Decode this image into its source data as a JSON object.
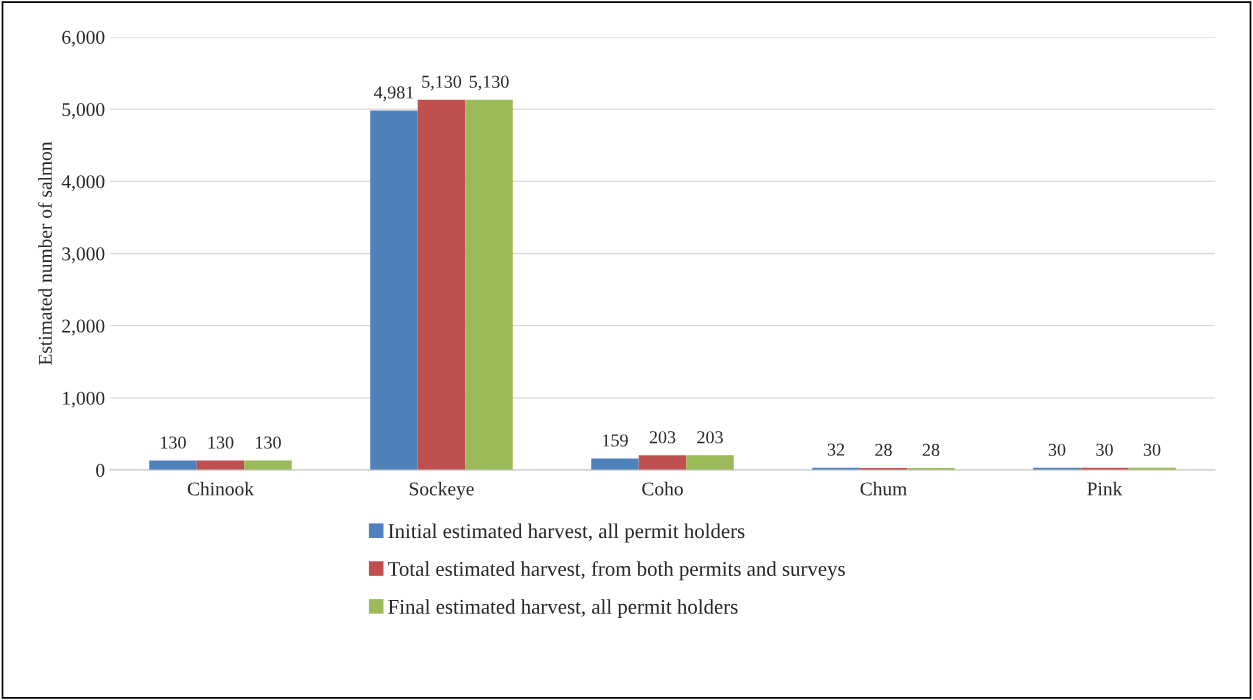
{
  "chart_data": {
    "type": "bar",
    "ylabel": "Estimated number of salmon",
    "categories": [
      "Chinook",
      "Sockeye",
      "Coho",
      "Chum",
      "Pink"
    ],
    "series": [
      {
        "name": "Initial estimated harvest, all permit holders",
        "color": "#4f81bd",
        "values": [
          130,
          4981,
          159,
          32,
          30
        ],
        "value_labels": [
          "130",
          "4,981",
          "159",
          "32",
          "30"
        ]
      },
      {
        "name": "Total estimated harvest, from both permits and surveys",
        "color": "#c0504d",
        "values": [
          130,
          5130,
          203,
          28,
          30
        ],
        "value_labels": [
          "130",
          "5,130",
          "203",
          "28",
          "30"
        ]
      },
      {
        "name": "Final estimated harvest, all permit holders",
        "color": "#9bbb59",
        "values": [
          130,
          5130,
          203,
          28,
          30
        ],
        "value_labels": [
          "130",
          "5,130",
          "203",
          "28",
          "30"
        ]
      }
    ],
    "ylim": [
      0,
      6000
    ],
    "yticks": [
      {
        "value": 0,
        "label": "0"
      },
      {
        "value": 1000,
        "label": "1,000"
      },
      {
        "value": 2000,
        "label": "2,000"
      },
      {
        "value": 3000,
        "label": "3,000"
      },
      {
        "value": 4000,
        "label": "4,000"
      },
      {
        "value": 5000,
        "label": "5,000"
      },
      {
        "value": 6000,
        "label": "6,000"
      }
    ],
    "grid": "y",
    "legend": "bottom"
  }
}
